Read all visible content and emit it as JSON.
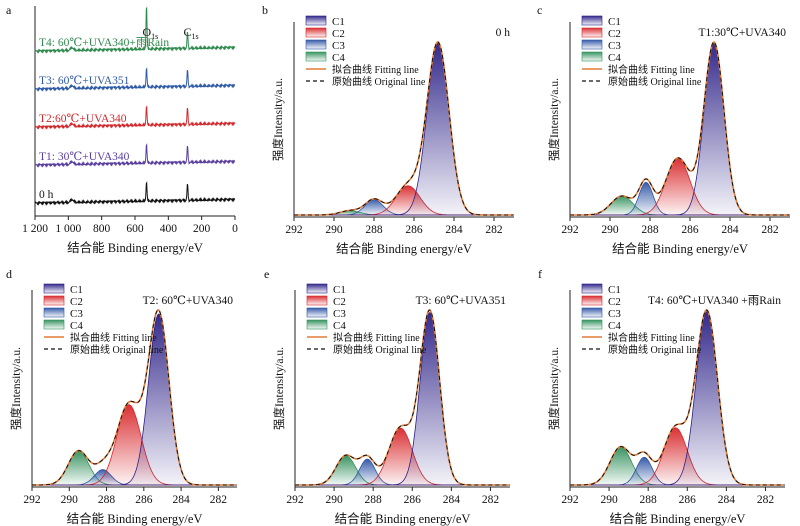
{
  "colors": {
    "C1": "#2a1f86",
    "C2": "#d8262a",
    "C3": "#2e54a6",
    "C4": "#2f8f5a",
    "fit": "#e07b39",
    "original": "#111111",
    "T4": "#2f8a4e",
    "T3": "#2f5aa6",
    "T2": "#d32a2e",
    "T1": "#5a3fa0",
    "T0": "#111111"
  },
  "chart_data": [
    {
      "type": "line",
      "panel": "a",
      "xlabel": "结合能 Binding energy/eV",
      "ylabel": "",
      "xlim": [
        1200,
        0
      ],
      "x_ticks": [
        "1 200",
        "1 000",
        "800",
        "600",
        "400",
        "200",
        "0"
      ],
      "peak_labels": [
        {
          "text": "O",
          "sub": "1s",
          "x": 531
        },
        {
          "text": "C",
          "sub": "1s",
          "x": 285
        }
      ],
      "series": [
        {
          "name": "T4: 60℃+UVA340+雨Rain",
          "color_key": "T4",
          "offset": 4
        },
        {
          "name": "T3: 60℃+UVA351",
          "color_key": "T3",
          "offset": 3
        },
        {
          "name": "T2:60℃+UVA340",
          "color_key": "T2",
          "offset": 2
        },
        {
          "name": "T1: 30℃+UVA340",
          "color_key": "T1",
          "offset": 1
        },
        {
          "name": "0 h",
          "color_key": "T0",
          "offset": 0
        }
      ]
    },
    {
      "type": "area",
      "panel": "b",
      "annotation": "0 h",
      "xlabel": "结合能 Binding energy/eV",
      "ylabel": "强度Intensity/a.u.",
      "xlim": [
        292,
        281
      ],
      "x_ticks": [
        292,
        290,
        288,
        286,
        284,
        282
      ],
      "legend": [
        "C1",
        "C2",
        "C3",
        "C4",
        "拟合曲线 Fitting line",
        "原始曲线 Original line"
      ],
      "peaks": [
        {
          "name": "C1",
          "center": 284.8,
          "height": 1.0,
          "sigma": 0.55
        },
        {
          "name": "C2",
          "center": 286.3,
          "height": 0.17,
          "sigma": 0.6
        },
        {
          "name": "C3",
          "center": 288.0,
          "height": 0.09,
          "sigma": 0.45
        },
        {
          "name": "C4",
          "center": 289.2,
          "height": 0.025,
          "sigma": 0.5
        }
      ]
    },
    {
      "type": "area",
      "panel": "c",
      "annotation": "T1:30℃+UVA340",
      "xlabel": "结合能 Binding energy/eV",
      "ylabel": "强度Intensity/a.u.",
      "xlim": [
        292,
        281
      ],
      "x_ticks": [
        292,
        290,
        288,
        286,
        284,
        282
      ],
      "legend": [
        "C1",
        "C2",
        "C3",
        "C4",
        "拟合曲线 Fitting line",
        "原始曲线 Original line"
      ],
      "peaks": [
        {
          "name": "C1",
          "center": 284.8,
          "height": 1.0,
          "sigma": 0.5
        },
        {
          "name": "C2",
          "center": 286.6,
          "height": 0.33,
          "sigma": 0.6
        },
        {
          "name": "C3",
          "center": 288.2,
          "height": 0.19,
          "sigma": 0.35
        },
        {
          "name": "C4",
          "center": 289.4,
          "height": 0.11,
          "sigma": 0.55
        }
      ]
    },
    {
      "type": "area",
      "panel": "d",
      "annotation": "T2: 60℃+UVA340",
      "xlabel": "结合能 Binding energy/eV",
      "ylabel": "强度Intensity/a.u.",
      "xlim": [
        292,
        281
      ],
      "x_ticks": [
        292,
        290,
        288,
        286,
        284,
        282
      ],
      "legend": [
        "C1",
        "C2",
        "C3",
        "C4",
        "拟合曲线 Fitting line",
        "原始曲线 Original line"
      ],
      "peaks": [
        {
          "name": "C1",
          "center": 285.2,
          "height": 1.0,
          "sigma": 0.55
        },
        {
          "name": "C2",
          "center": 286.8,
          "height": 0.47,
          "sigma": 0.65
        },
        {
          "name": "C3",
          "center": 288.2,
          "height": 0.09,
          "sigma": 0.45
        },
        {
          "name": "C4",
          "center": 289.5,
          "height": 0.2,
          "sigma": 0.55
        }
      ]
    },
    {
      "type": "area",
      "panel": "e",
      "annotation": "T3: 60℃+UVA351",
      "xlabel": "结合能 Binding energy/eV",
      "ylabel": "强度Intensity/a.u.",
      "xlim": [
        292,
        281
      ],
      "x_ticks": [
        292,
        290,
        288,
        286,
        284,
        282
      ],
      "legend": [
        "C1",
        "C2",
        "C3",
        "C4",
        "拟合曲线 Fitting line",
        "原始曲线 Original line"
      ],
      "peaks": [
        {
          "name": "C1",
          "center": 285.1,
          "height": 1.0,
          "sigma": 0.5
        },
        {
          "name": "C2",
          "center": 286.6,
          "height": 0.33,
          "sigma": 0.6
        },
        {
          "name": "C3",
          "center": 288.3,
          "height": 0.15,
          "sigma": 0.4
        },
        {
          "name": "C4",
          "center": 289.4,
          "height": 0.17,
          "sigma": 0.5
        }
      ]
    },
    {
      "type": "area",
      "panel": "f",
      "annotation": "T4: 60℃+UVA340 +雨Rain",
      "xlabel": "结合能 Binding energy/eV",
      "ylabel": "强度Intensity/a.u.",
      "xlim": [
        292,
        281
      ],
      "x_ticks": [
        292,
        290,
        288,
        286,
        284,
        282
      ],
      "legend": [
        "C1",
        "C2",
        "C3",
        "C4",
        "拟合曲线 Fitting line",
        "原始曲线 Original line"
      ],
      "peaks": [
        {
          "name": "C1",
          "center": 285.0,
          "height": 1.0,
          "sigma": 0.55
        },
        {
          "name": "C2",
          "center": 286.6,
          "height": 0.33,
          "sigma": 0.6
        },
        {
          "name": "C3",
          "center": 288.2,
          "height": 0.16,
          "sigma": 0.4
        },
        {
          "name": "C4",
          "center": 289.4,
          "height": 0.22,
          "sigma": 0.55
        }
      ]
    }
  ]
}
